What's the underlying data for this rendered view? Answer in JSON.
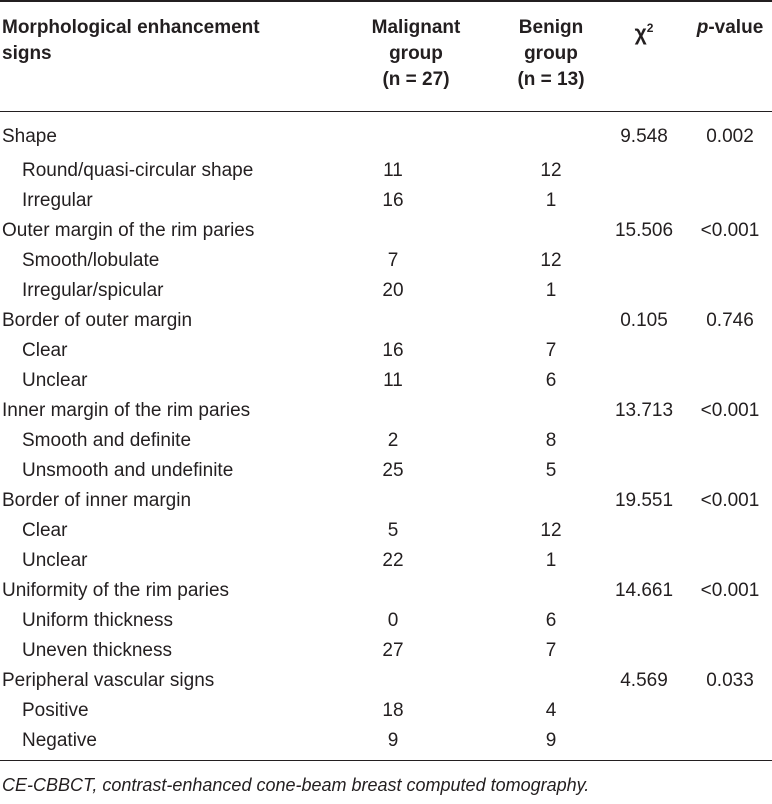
{
  "table": {
    "headers": {
      "col1_line1": "Morphological enhancement",
      "col1_line2": "signs",
      "col2_line1": "Malignant",
      "col2_line2": "group",
      "col2_line3": "(n = 27)",
      "col3_line1": "Benign",
      "col3_line2": "group",
      "col3_line3": "(n = 13)",
      "col4_symbol": "χ",
      "col4_sup": "2",
      "col5_italic": "p",
      "col5_rest": "-value"
    },
    "rows": [
      {
        "label": "Shape",
        "malignant": "",
        "benign": "",
        "chi2": "9.548",
        "p": "0.002",
        "sub": false
      },
      {
        "label": "Round/quasi-circular shape",
        "malignant": "11",
        "benign": "12",
        "chi2": "",
        "p": "",
        "sub": true
      },
      {
        "label": "Irregular",
        "malignant": "16",
        "benign": "1",
        "chi2": "",
        "p": "",
        "sub": true
      },
      {
        "label": "Outer margin of the rim paries",
        "malignant": "",
        "benign": "",
        "chi2": "15.506",
        "p": "<0.001",
        "sub": false
      },
      {
        "label": "Smooth/lobulate",
        "malignant": "7",
        "benign": "12",
        "chi2": "",
        "p": "",
        "sub": true
      },
      {
        "label": "Irregular/spicular",
        "malignant": "20",
        "benign": "1",
        "chi2": "",
        "p": "",
        "sub": true
      },
      {
        "label": "Border of outer margin",
        "malignant": "",
        "benign": "",
        "chi2": "0.105",
        "p": "0.746",
        "sub": false
      },
      {
        "label": "Clear",
        "malignant": "16",
        "benign": "7",
        "chi2": "",
        "p": "",
        "sub": true
      },
      {
        "label": "Unclear",
        "malignant": "11",
        "benign": "6",
        "chi2": "",
        "p": "",
        "sub": true
      },
      {
        "label": "Inner margin of the rim paries",
        "malignant": "",
        "benign": "",
        "chi2": "13.713",
        "p": "<0.001",
        "sub": false
      },
      {
        "label": "Smooth and definite",
        "malignant": "2",
        "benign": "8",
        "chi2": "",
        "p": "",
        "sub": true
      },
      {
        "label": "Unsmooth and undefinite",
        "malignant": "25",
        "benign": "5",
        "chi2": "",
        "p": "",
        "sub": true
      },
      {
        "label": "Border of inner margin",
        "malignant": "",
        "benign": "",
        "chi2": "19.551",
        "p": "<0.001",
        "sub": false
      },
      {
        "label": "Clear",
        "malignant": "5",
        "benign": "12",
        "chi2": "",
        "p": "",
        "sub": true
      },
      {
        "label": "Unclear",
        "malignant": "22",
        "benign": "1",
        "chi2": "",
        "p": "",
        "sub": true
      },
      {
        "label": "Uniformity of the rim paries",
        "malignant": "",
        "benign": "",
        "chi2": "14.661",
        "p": "<0.001",
        "sub": false
      },
      {
        "label": "Uniform thickness",
        "malignant": "0",
        "benign": "6",
        "chi2": "",
        "p": "",
        "sub": true
      },
      {
        "label": "Uneven thickness",
        "malignant": "27",
        "benign": "7",
        "chi2": "",
        "p": "",
        "sub": true
      },
      {
        "label": "Peripheral vascular signs",
        "malignant": "",
        "benign": "",
        "chi2": "4.569",
        "p": "0.033",
        "sub": false
      },
      {
        "label": "Positive",
        "malignant": "18",
        "benign": "4",
        "chi2": "",
        "p": "",
        "sub": true
      },
      {
        "label": "Negative",
        "malignant": "9",
        "benign": "9",
        "chi2": "",
        "p": "",
        "sub": true
      }
    ]
  },
  "footnote": "CE-CBBCT, contrast-enhanced cone-beam breast computed tomography."
}
